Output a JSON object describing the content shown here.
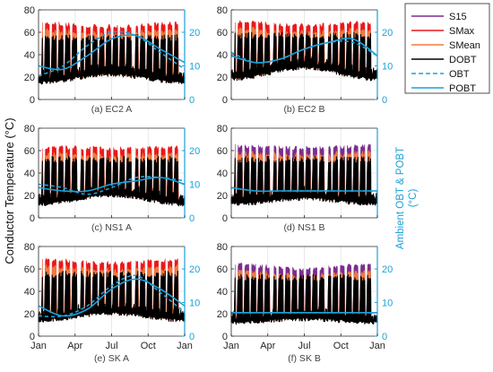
{
  "chart_data": {
    "type": "line",
    "ylabel_left": "Conductor Temperature (°C)",
    "ylabel_right": [
      "Ambient OBT & POBT",
      "(°C)"
    ],
    "x_ticks": [
      "Jan",
      "Apr",
      "Jul",
      "Oct",
      "Jan"
    ],
    "ylim_left": [
      0,
      80
    ],
    "yticks_left": [
      0,
      20,
      40,
      60,
      80
    ],
    "ylim_right": [
      0,
      26.67
    ],
    "yticks_right": [
      0,
      10,
      20
    ],
    "grid": true,
    "legend": {
      "placement": "right-top",
      "entries": [
        {
          "name": "S15",
          "color": "#7b2d8e",
          "style": "solid"
        },
        {
          "name": "SMax",
          "color": "#e8191b",
          "style": "solid"
        },
        {
          "name": "SMean",
          "color": "#f07b3f",
          "style": "solid"
        },
        {
          "name": "DOBT",
          "color": "#000000",
          "style": "solid"
        },
        {
          "name": "OBT",
          "color": "#1ba1d8",
          "style": "dashed"
        },
        {
          "name": "POBT",
          "color": "#1ba1d8",
          "style": "solid"
        }
      ]
    },
    "panels": [
      {
        "id": "ec2a",
        "caption": "(a) EC2 A",
        "top": "SMax",
        "top_level_summer": 65,
        "top_level_winter": 68,
        "black_peak": 58,
        "black_low_summer": 22,
        "black_low_winter": 15,
        "obt_months": [
          0,
          2,
          4,
          6,
          8,
          10,
          12
        ],
        "obt_values": [
          7,
          10,
          16,
          20,
          19,
          14,
          9
        ],
        "pobt_months": [
          0,
          2,
          4,
          6,
          8,
          10,
          12
        ],
        "pobt_values": [
          10,
          9,
          13,
          18,
          19,
          15,
          11
        ]
      },
      {
        "id": "ec2b",
        "caption": "(b) EC2 B",
        "top": "SMax",
        "top_level_summer": 66,
        "top_level_winter": 69,
        "black_peak": 60,
        "black_low_summer": 28,
        "black_low_winter": 18,
        "obt_months": [
          0,
          2,
          4,
          6,
          8,
          10,
          12
        ],
        "obt_values": [
          14,
          11,
          12,
          15,
          17,
          17,
          13
        ],
        "pobt_months": [
          0,
          2,
          4,
          6,
          8,
          10,
          12
        ],
        "pobt_values": [
          13,
          11,
          12,
          15,
          17,
          18,
          13
        ]
      },
      {
        "id": "ns1a",
        "caption": "(c) NS1 A",
        "top": "SMax",
        "top_level_summer": 62,
        "top_level_winter": 63,
        "black_peak": 55,
        "black_low_summer": 20,
        "black_low_winter": 12,
        "obt_months": [
          0,
          2,
          4,
          6,
          8,
          10,
          12
        ],
        "obt_values": [
          10,
          9,
          7,
          9,
          12,
          12,
          11
        ],
        "pobt_months": [
          0,
          2,
          4,
          6,
          8,
          10,
          12
        ],
        "pobt_values": [
          9,
          8,
          8,
          10,
          11,
          12,
          10
        ]
      },
      {
        "id": "ns1b",
        "caption": "(d) NS1 B",
        "top": "S15",
        "top_level_summer": 62,
        "top_level_winter": 64,
        "black_peak": 55,
        "black_low_summer": 17,
        "black_low_winter": 12,
        "obt_months": [
          0,
          2,
          4,
          6,
          8,
          10,
          12
        ],
        "obt_values": [
          9,
          8,
          8,
          8,
          8,
          8,
          8
        ],
        "pobt_months": [
          0,
          2,
          4,
          6,
          8,
          10,
          12
        ],
        "pobt_values": [
          9,
          8,
          8,
          8,
          8,
          8,
          8
        ]
      },
      {
        "id": "ska",
        "caption": "(e) SK A",
        "top": "SMax",
        "top_level_summer": 65,
        "top_level_winter": 68,
        "black_peak": 58,
        "black_low_summer": 20,
        "black_low_winter": 14,
        "obt_months": [
          0,
          2,
          4,
          6,
          8,
          10,
          12
        ],
        "obt_values": [
          6,
          6,
          9,
          15,
          18,
          13,
          7
        ],
        "pobt_months": [
          0,
          2,
          4,
          6,
          8,
          10,
          12
        ],
        "pobt_values": [
          9,
          6,
          8,
          14,
          17,
          14,
          9
        ]
      },
      {
        "id": "skb",
        "caption": "(f) SK B",
        "top": "S15",
        "top_level_summer": 60,
        "top_level_winter": 64,
        "black_peak": 55,
        "black_low_summer": 15,
        "black_low_winter": 12,
        "obt_months": [
          0,
          2,
          4,
          6,
          8,
          10,
          12
        ],
        "obt_values": [
          7,
          7,
          7,
          7,
          7,
          7,
          7
        ],
        "pobt_months": [
          0,
          2,
          4,
          6,
          8,
          10,
          12
        ],
        "pobt_values": [
          7,
          7,
          7,
          7,
          7,
          7,
          7
        ]
      }
    ]
  }
}
